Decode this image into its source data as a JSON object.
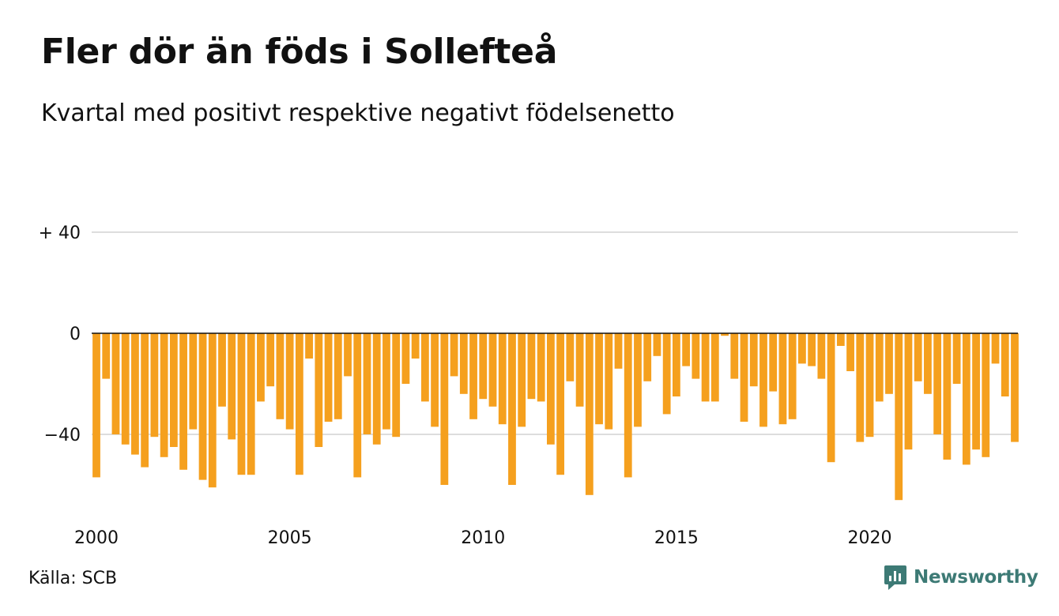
{
  "title": "Fler dör än föds i Sollefteå",
  "subtitle": "Kvartal med positivt respektive negativt födelsenetto",
  "source": "Källa: SCB",
  "logo_text": "Newsworthy",
  "colors": {
    "bar": "#f5a01e",
    "grid": "#dddddd",
    "baseline": "#111111",
    "logo": "#3d7a75"
  },
  "chart_data": {
    "type": "bar",
    "y_ticks": [
      {
        "value": 40,
        "label": "+ 40"
      },
      {
        "value": 0,
        "label": "0"
      },
      {
        "value": -40,
        "label": "−40"
      }
    ],
    "x_ticks": [
      {
        "year": 2000,
        "label": "2000"
      },
      {
        "year": 2005,
        "label": "2005"
      },
      {
        "year": 2010,
        "label": "2010"
      },
      {
        "year": 2015,
        "label": "2015"
      },
      {
        "year": 2020,
        "label": "2020"
      }
    ],
    "x_start": "2000 Q1",
    "ylim": [
      -70,
      40
    ],
    "grid": true,
    "values": [
      -57,
      -18,
      -40,
      -44,
      -48,
      -53,
      -41,
      -49,
      -45,
      -54,
      -38,
      -58,
      -61,
      -29,
      -42,
      -56,
      -56,
      -27,
      -21,
      -34,
      -38,
      -56,
      -10,
      -45,
      -35,
      -34,
      -17,
      -57,
      -40,
      -44,
      -38,
      -41,
      -20,
      -10,
      -27,
      -37,
      -60,
      -17,
      -24,
      -34,
      -26,
      -29,
      -36,
      -60,
      -37,
      -26,
      -27,
      -44,
      -56,
      -19,
      -29,
      -64,
      -36,
      -38,
      -14,
      -57,
      -37,
      -19,
      -9,
      -32,
      -25,
      -13,
      -18,
      -27,
      -27,
      -1,
      -18,
      -35,
      -21,
      -37,
      -23,
      -36,
      -34,
      -12,
      -13,
      -18,
      -51,
      -5,
      -15,
      -43,
      -41,
      -27,
      -24,
      -66,
      -46,
      -19,
      -24,
      -40,
      -50,
      -20,
      -52,
      -46,
      -49,
      -12,
      -25,
      -43
    ]
  }
}
